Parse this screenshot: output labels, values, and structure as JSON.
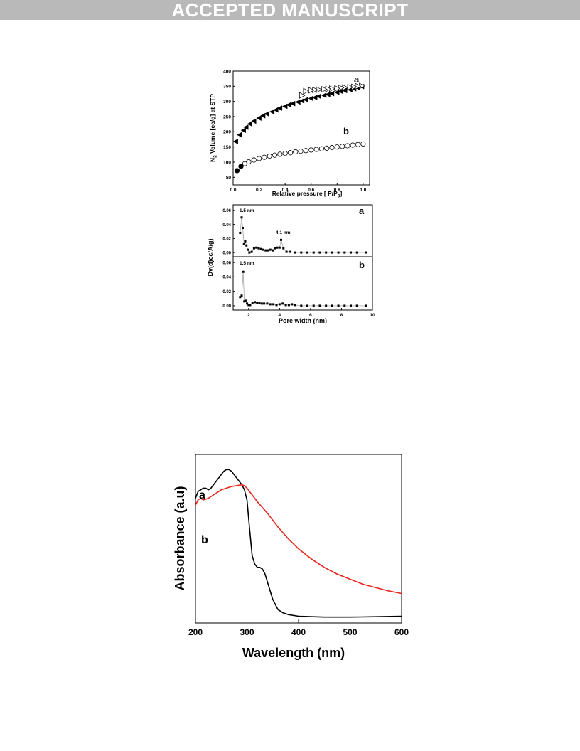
{
  "banner": {
    "text": "ACCEPTED MANUSCRIPT"
  },
  "colors": {
    "banner_bg": "#b9b9b9",
    "banner_text": "#ffffff",
    "series_a": "#000000",
    "series_b_uv": "#e8231c"
  },
  "chart_data": [
    {
      "type": "scatter",
      "xlabel": "Relative pressure [ P/P",
      "xlabel_sub": "0",
      "xlabel_end": "]",
      "ylabel_prefix": "N",
      "ylabel_sub": "2",
      "ylabel_rest": " Volume [cc/g] at STP",
      "xlim": [
        0.0,
        1.05
      ],
      "ylim": [
        25,
        400
      ],
      "xticks": [
        "0.0",
        "0.2",
        "0.4",
        "0.6",
        "0.8",
        "1.0"
      ],
      "yticks": [
        "50",
        "100",
        "150",
        "200",
        "250",
        "300",
        "350",
        "400"
      ],
      "grid": false,
      "series": [
        {
          "name": "a",
          "x": [
            0.02,
            0.05,
            0.08,
            0.1,
            0.13,
            0.16,
            0.2,
            0.23,
            0.26,
            0.3,
            0.33,
            0.36,
            0.4,
            0.43,
            0.46,
            0.5,
            0.53,
            0.56,
            0.6,
            0.63,
            0.66,
            0.7,
            0.73,
            0.76,
            0.8,
            0.83,
            0.86,
            0.9,
            0.93,
            0.96,
            0.99
          ],
          "y": [
            168,
            190,
            205,
            215,
            226,
            235,
            245,
            253,
            259,
            266,
            272,
            278,
            284,
            289,
            293,
            298,
            302,
            306,
            310,
            313,
            317,
            320,
            323,
            326,
            330,
            333,
            336,
            339,
            342,
            345,
            349
          ]
        },
        {
          "name": "a-desorption",
          "x": [
            0.99,
            0.96,
            0.93,
            0.9,
            0.86,
            0.83,
            0.8,
            0.76,
            0.73,
            0.7,
            0.66,
            0.63,
            0.6,
            0.56,
            0.53
          ],
          "y": [
            351,
            350,
            348,
            347,
            346,
            345,
            343,
            342,
            341,
            340,
            339,
            338,
            337,
            334,
            320
          ]
        },
        {
          "name": "b",
          "x": [
            0.03,
            0.06,
            0.09,
            0.12,
            0.16,
            0.2,
            0.24,
            0.28,
            0.32,
            0.36,
            0.4,
            0.44,
            0.48,
            0.52,
            0.56,
            0.6,
            0.64,
            0.68,
            0.72,
            0.76,
            0.8,
            0.84,
            0.88,
            0.92,
            0.96,
            1.0
          ],
          "y": [
            72,
            86,
            95,
            101,
            107,
            112,
            116,
            120,
            123,
            126,
            129,
            131,
            134,
            136,
            138,
            140,
            142,
            144,
            146,
            148,
            150,
            152,
            154,
            156,
            158,
            160
          ]
        }
      ],
      "labels": [
        "a",
        "b"
      ]
    },
    {
      "type": "line",
      "xlabel": "Pore width (nm)",
      "ylabel": "Dv(d)cc/A/g)",
      "xlim": [
        1,
        10
      ],
      "ylim_a": [
        -0.006,
        0.068
      ],
      "ylim_b": [
        -0.006,
        0.068
      ],
      "xticks": [
        "2",
        "4",
        "6",
        "8",
        "10"
      ],
      "yticks": [
        "0.00",
        "0.02",
        "0.04",
        "0.06"
      ],
      "grid": false,
      "series": [
        {
          "name": "a",
          "x": [
            1.45,
            1.55,
            1.62,
            1.7,
            1.78,
            1.86,
            1.95,
            2.05,
            2.2,
            2.35,
            2.5,
            2.65,
            2.8,
            2.95,
            3.1,
            3.25,
            3.4,
            3.55,
            3.7,
            3.85,
            4.0,
            4.1,
            4.25,
            4.45,
            4.7,
            5.0,
            5.4,
            5.8,
            6.2,
            6.6,
            7.0,
            7.4,
            7.8,
            8.2,
            8.6,
            9.0,
            9.6
          ],
          "y": [
            0.028,
            0.05,
            0.035,
            0.012,
            0.016,
            0.01,
            0.004,
            0.0,
            0.001,
            0.006,
            0.007,
            0.006,
            0.005,
            0.004,
            0.003,
            0.003,
            0.004,
            0.003,
            0.006,
            0.007,
            0.007,
            0.018,
            0.006,
            0.001,
            0.001,
            0.0,
            0.0,
            0.0,
            0.0,
            0.0,
            0.0,
            0.0,
            0.0,
            0.0,
            0.0,
            0.0,
            0.0
          ]
        },
        {
          "name": "b",
          "x": [
            1.45,
            1.55,
            1.65,
            1.72,
            1.8,
            1.9,
            2.0,
            2.1,
            2.25,
            2.4,
            2.55,
            2.7,
            2.85,
            3.0,
            3.2,
            3.4,
            3.6,
            3.8,
            4.0,
            4.2,
            4.4,
            4.6,
            4.8,
            5.0,
            5.4,
            5.8,
            6.2,
            6.6,
            7.0,
            7.4,
            7.8,
            8.2,
            8.6,
            9.0,
            9.6
          ],
          "y": [
            0.012,
            0.014,
            0.047,
            0.006,
            0.007,
            0.003,
            0.001,
            0.001,
            0.004,
            0.005,
            0.004,
            0.004,
            0.003,
            0.003,
            0.003,
            0.002,
            0.002,
            0.001,
            0.002,
            0.003,
            0.001,
            0.001,
            0.002,
            0.001,
            0.0,
            0.0,
            0.0,
            0.0,
            0.0,
            0.0,
            0.0,
            0.0,
            0.0,
            0.0,
            0.0
          ]
        }
      ],
      "annotations": {
        "a_peak1": "1.5 nm",
        "a_peak2": "4.1 nm",
        "b_peak1": "1.5 nm"
      },
      "labels": [
        "a",
        "b"
      ]
    },
    {
      "type": "line",
      "xlabel": "Wavelength (nm)",
      "ylabel": "Absorbance (a.u)",
      "xlim": [
        200,
        600
      ],
      "ylim": [
        0,
        1
      ],
      "xticks": [
        "200",
        "300",
        "400",
        "500",
        "600"
      ],
      "grid": false,
      "series": [
        {
          "name": "a",
          "x": [
            200,
            205,
            210,
            215,
            220,
            225,
            230,
            235,
            240,
            245,
            250,
            255,
            260,
            265,
            270,
            275,
            280,
            285,
            290,
            295,
            300,
            305,
            310,
            315,
            320,
            325,
            330,
            335,
            340,
            345,
            350,
            360,
            370,
            380,
            400,
            450,
            500,
            550,
            600
          ],
          "y": [
            0.74,
            0.78,
            0.79,
            0.8,
            0.8,
            0.79,
            0.8,
            0.82,
            0.84,
            0.86,
            0.88,
            0.9,
            0.91,
            0.91,
            0.9,
            0.88,
            0.86,
            0.84,
            0.82,
            0.79,
            0.73,
            0.56,
            0.4,
            0.35,
            0.33,
            0.33,
            0.32,
            0.29,
            0.24,
            0.19,
            0.14,
            0.08,
            0.06,
            0.05,
            0.04,
            0.035,
            0.035,
            0.037,
            0.04
          ]
        },
        {
          "name": "b",
          "x": [
            200,
            205,
            210,
            215,
            220,
            225,
            230,
            240,
            250,
            260,
            270,
            280,
            290,
            295,
            300,
            310,
            320,
            340,
            360,
            380,
            400,
            425,
            450,
            475,
            500,
            525,
            550,
            575,
            600
          ],
          "y": [
            0.7,
            0.73,
            0.74,
            0.73,
            0.735,
            0.74,
            0.75,
            0.77,
            0.79,
            0.8,
            0.81,
            0.815,
            0.82,
            0.815,
            0.8,
            0.76,
            0.72,
            0.65,
            0.57,
            0.5,
            0.44,
            0.38,
            0.33,
            0.29,
            0.26,
            0.23,
            0.21,
            0.19,
            0.175
          ]
        }
      ],
      "labels": [
        "a",
        "b"
      ]
    }
  ]
}
